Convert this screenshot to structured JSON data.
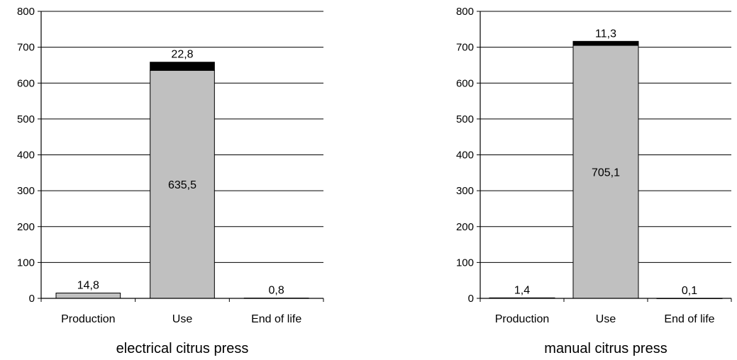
{
  "chart_data": [
    {
      "type": "bar",
      "stacked": true,
      "title": "electrical citrus press",
      "categories": [
        "Production",
        "Use",
        "End of life"
      ],
      "ylim": [
        0,
        800
      ],
      "yticks": [
        "0",
        "100",
        "200",
        "300",
        "400",
        "500",
        "600",
        "700",
        "800"
      ],
      "grid": true,
      "series": [
        {
          "values": [
            14.8,
            635.5,
            0.8
          ],
          "labels": [
            "14,8",
            "635,5",
            "0,8"
          ],
          "color": "#c0c0c0"
        },
        {
          "values": [
            0,
            22.8,
            0
          ],
          "labels": [
            "",
            "22,8",
            ""
          ],
          "color": "#000000"
        }
      ]
    },
    {
      "type": "bar",
      "stacked": true,
      "title": "manual citrus press",
      "categories": [
        "Production",
        "Use",
        "End of life"
      ],
      "ylim": [
        0,
        800
      ],
      "yticks": [
        "0",
        "100",
        "200",
        "300",
        "400",
        "500",
        "600",
        "700",
        "800"
      ],
      "grid": true,
      "series": [
        {
          "values": [
            1.4,
            705.1,
            0.1
          ],
          "labels": [
            "1,4",
            "705,1",
            "0,1"
          ],
          "color": "#c0c0c0"
        },
        {
          "values": [
            0,
            11.3,
            0
          ],
          "labels": [
            "",
            "11,3",
            ""
          ],
          "color": "#000000"
        }
      ]
    }
  ]
}
